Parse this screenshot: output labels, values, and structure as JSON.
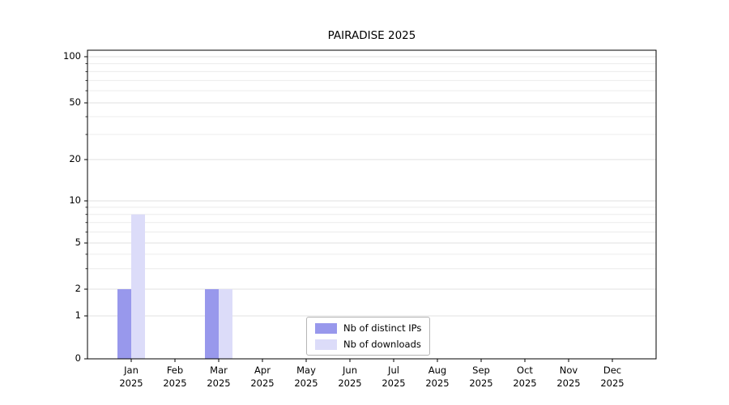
{
  "chart_data": {
    "type": "bar",
    "title": "PAIRADISE 2025",
    "categories": [
      "Jan",
      "Feb",
      "Mar",
      "Apr",
      "May",
      "Jun",
      "Jul",
      "Aug",
      "Sep",
      "Oct",
      "Nov",
      "Dec"
    ],
    "x_year": "2025",
    "series": [
      {
        "name": "Nb of distinct IPs",
        "color": "#9898ec",
        "values": [
          2,
          0,
          2,
          0,
          0,
          0,
          0,
          0,
          0,
          0,
          0,
          0
        ]
      },
      {
        "name": "Nb of downloads",
        "color": "#dcdcf9",
        "values": [
          8,
          0,
          2,
          0,
          0,
          0,
          0,
          0,
          0,
          0,
          0,
          0
        ]
      }
    ],
    "y_ticks": [
      0,
      1,
      2,
      5,
      10,
      20,
      50,
      100
    ],
    "y_scale": "symlog",
    "ylim": [
      0,
      110
    ],
    "grid": "horizontal",
    "legend_position": "bottom-center",
    "background": "#ffffff"
  }
}
